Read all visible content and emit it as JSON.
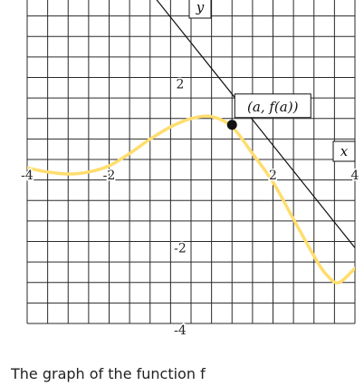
{
  "caption": "The graph of the function f",
  "chart_data": {
    "type": "line",
    "title": "",
    "xlabel": "x",
    "ylabel": "y",
    "xlim": [
      -4,
      4
    ],
    "ylim": [
      -4,
      4
    ],
    "grid": true,
    "x_ticks": [
      {
        "value": -4,
        "label": "-4"
      },
      {
        "value": -2,
        "label": "-2"
      },
      {
        "value": 2,
        "label": "2"
      },
      {
        "value": 4,
        "label": "4"
      }
    ],
    "y_ticks": [
      {
        "value": 2,
        "label": "2"
      },
      {
        "value": -2,
        "label": "-2"
      },
      {
        "value": -4,
        "label": "-4"
      }
    ],
    "series": [
      {
        "kind": "curve",
        "color": "#FFDD6E",
        "x": [
          -4.0,
          -3.5,
          -3.0,
          -2.5,
          -2.0,
          -1.5,
          -1.0,
          -0.5,
          0.0,
          0.5,
          1.0,
          1.5,
          2.0,
          2.5,
          3.0,
          3.3,
          3.6,
          4.0
        ],
        "y": [
          -0.05,
          -0.15,
          -0.2,
          -0.15,
          0.0,
          0.3,
          0.65,
          0.95,
          1.15,
          1.2,
          0.95,
          0.3,
          -0.4,
          -1.3,
          -2.2,
          -2.65,
          -2.85,
          -2.5
        ]
      },
      {
        "kind": "tangent-line",
        "color": "#111111",
        "x": [
          -4.0,
          4.0
        ],
        "y": [
          8.0,
          -2.0
        ]
      }
    ],
    "annotations": [
      {
        "kind": "point",
        "x": 1.0,
        "y": 1.0,
        "label": "(a, f(a))"
      }
    ]
  }
}
